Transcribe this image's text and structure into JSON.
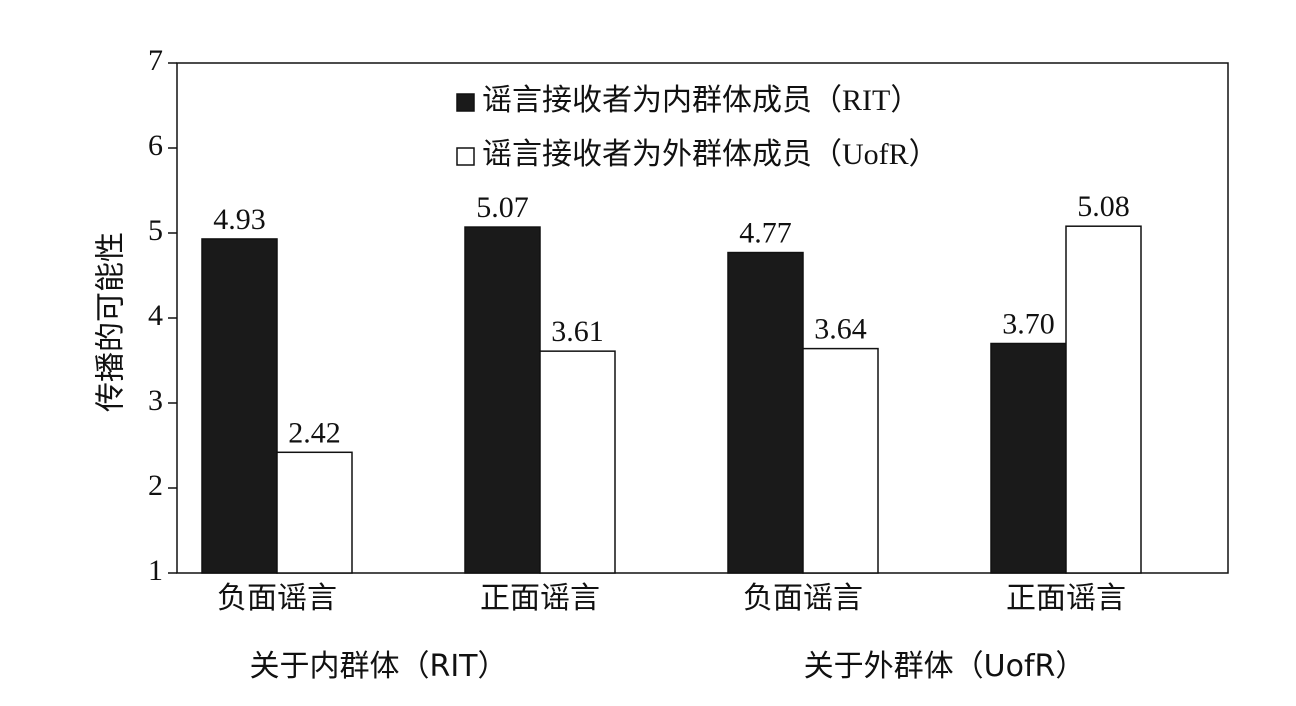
{
  "chart_data": {
    "type": "bar",
    "title": "",
    "ylabel": "传播的可能性",
    "ylim": [
      1,
      7
    ],
    "yticks": [
      1,
      2,
      3,
      4,
      5,
      6,
      7
    ],
    "grid": false,
    "legend_position": "top-center",
    "categories": [
      "负面谣言",
      "正面谣言",
      "负面谣言",
      "正面谣言"
    ],
    "groups": [
      {
        "label": "关于内群体（RIT）",
        "categories": [
          "负面谣言",
          "正面谣言"
        ]
      },
      {
        "label": "关于外群体（UofR）",
        "categories": [
          "负面谣言",
          "正面谣言"
        ]
      }
    ],
    "series": [
      {
        "name": "谣言接收者为内群体成员（RIT）",
        "color": "#1a1a1a",
        "values": [
          4.93,
          5.07,
          4.77,
          3.7
        ],
        "labels": [
          "4.93",
          "5.07",
          "4.77",
          "3.70"
        ]
      },
      {
        "name": "谣言接收者为外群体成员（UofR）",
        "color": "#ffffff",
        "values": [
          2.42,
          3.61,
          3.64,
          5.08
        ],
        "labels": [
          "2.42",
          "3.61",
          "3.64",
          "5.08"
        ]
      }
    ]
  }
}
